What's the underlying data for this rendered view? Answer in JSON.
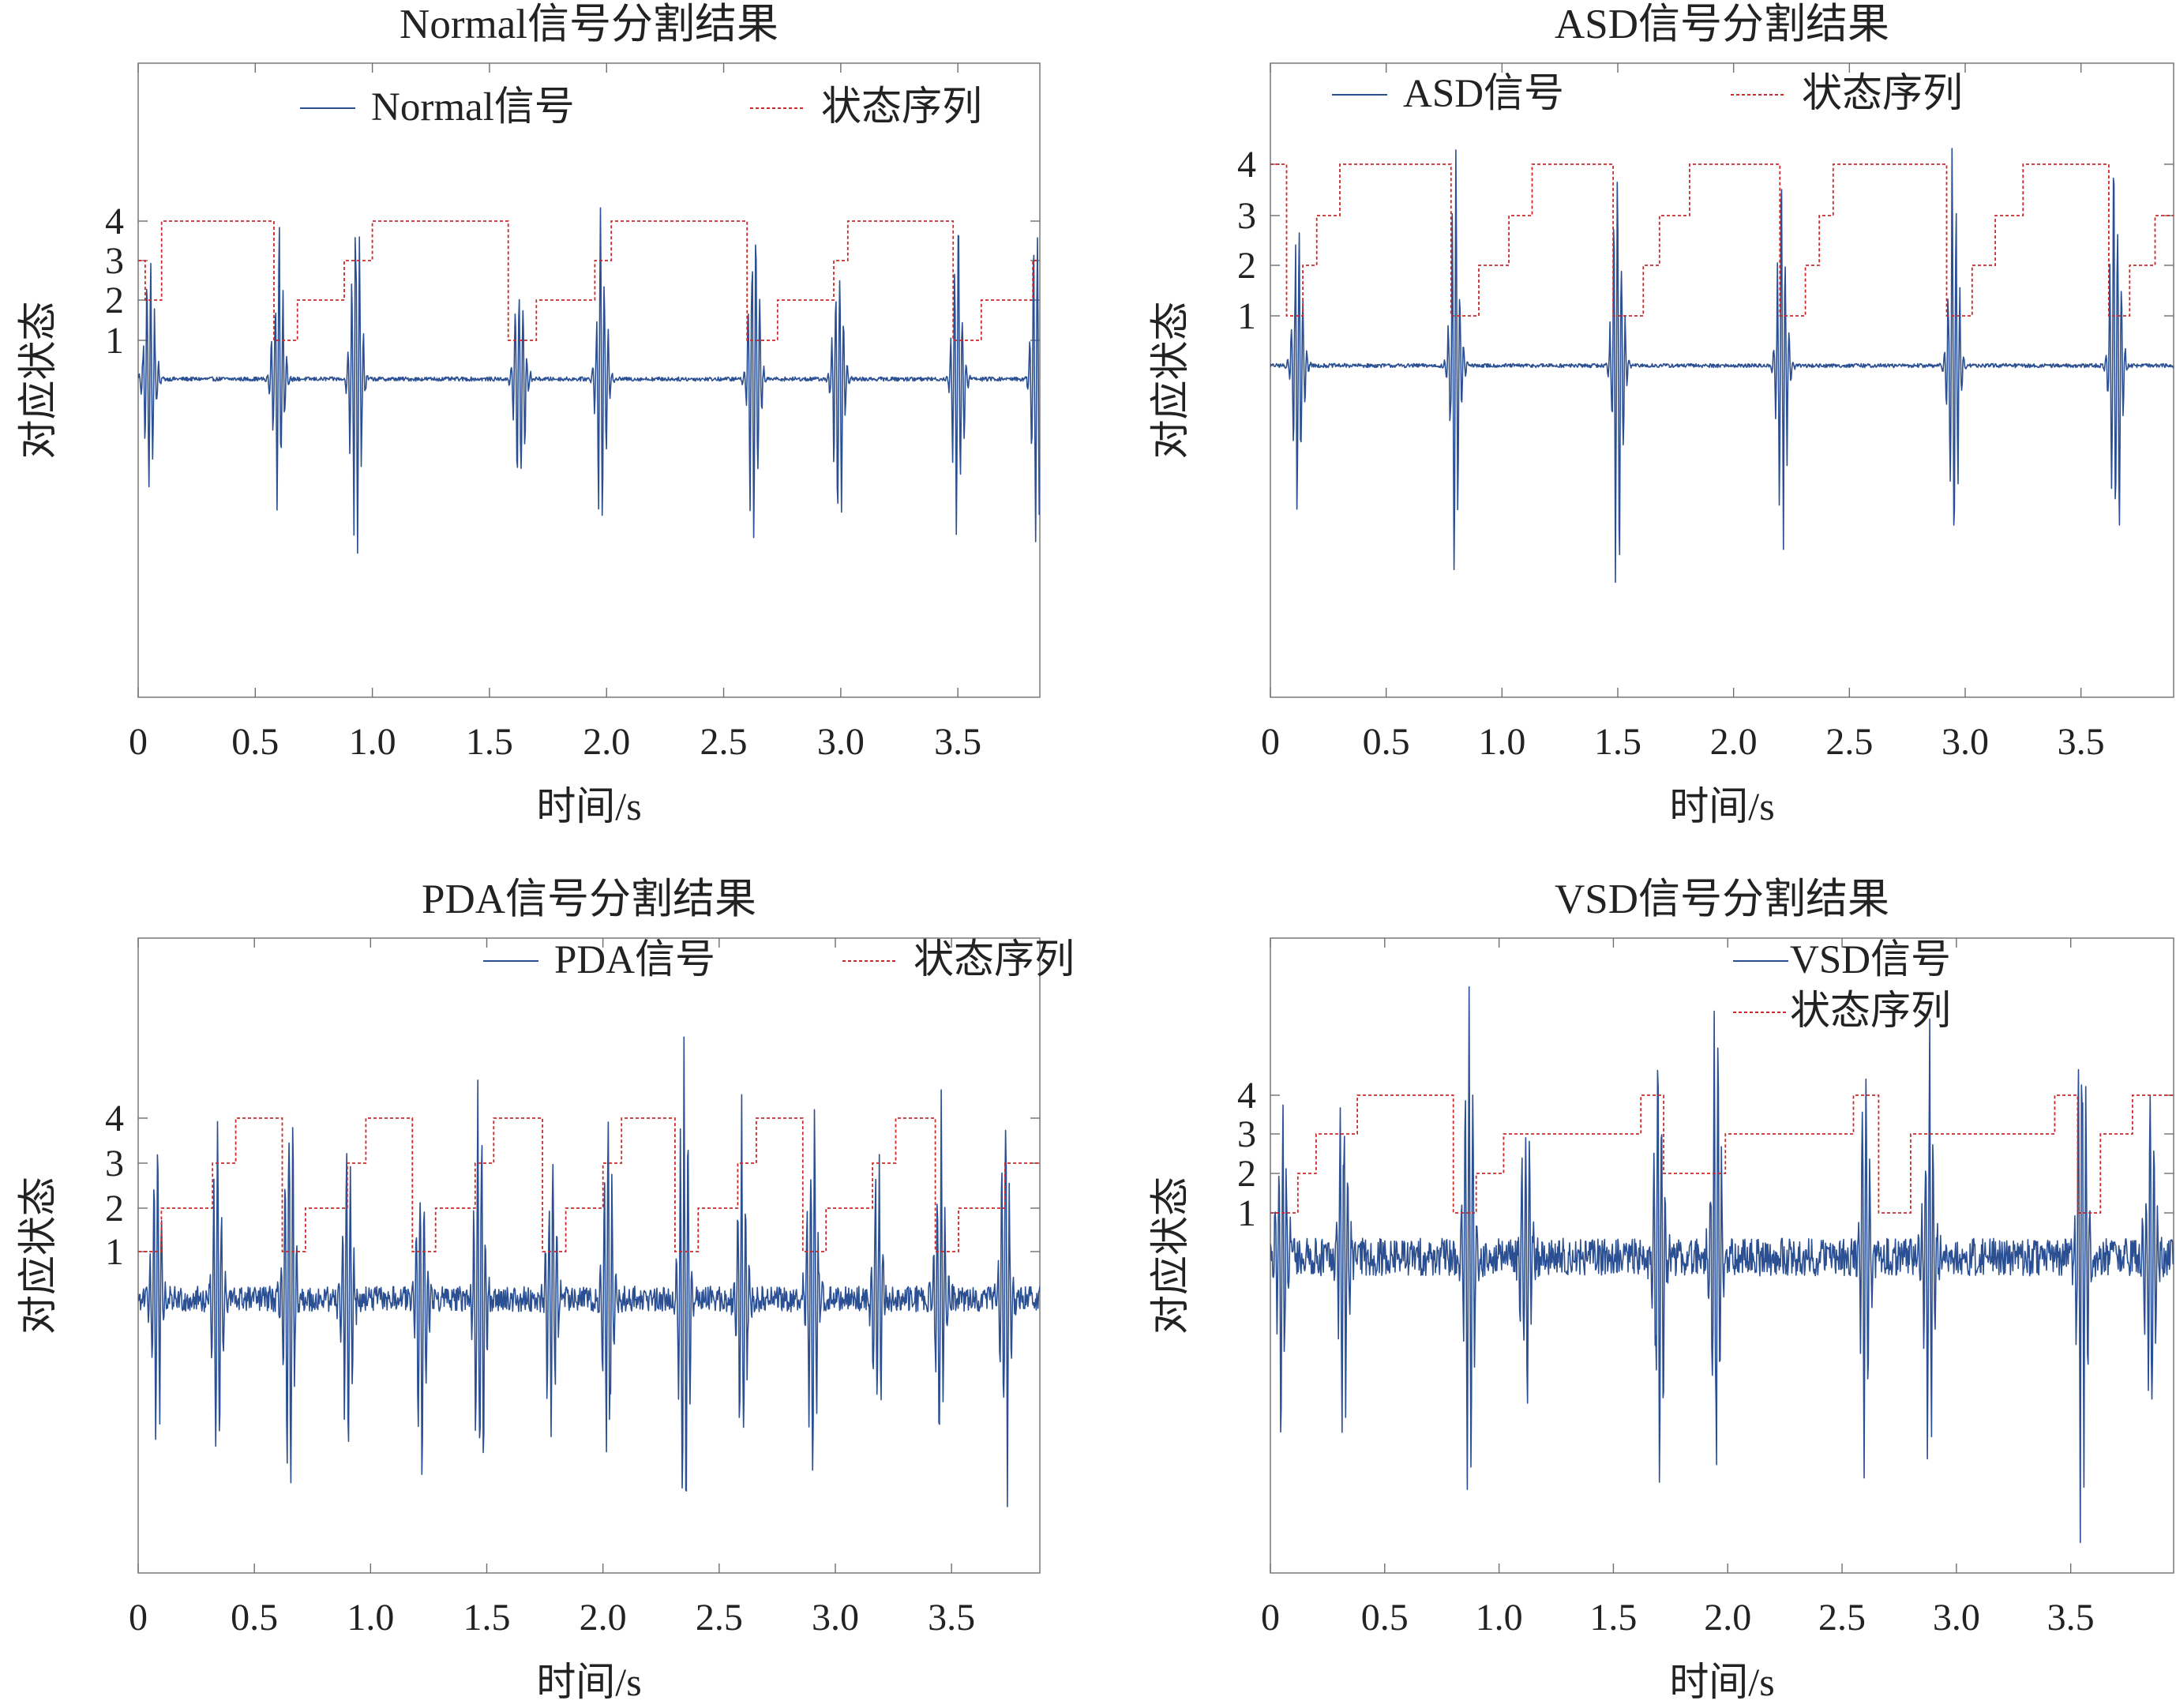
{
  "chart_data": [
    {
      "type": "line",
      "title": "Normal信号分割结果",
      "xlabel": "时间/s",
      "ylabel": "对应状态",
      "xlim": [
        0,
        3.85
      ],
      "xticks": [
        "0",
        "0.5",
        "1.0",
        "1.5",
        "2.0",
        "2.5",
        "3.0",
        "3.5"
      ],
      "yticks": [
        "1",
        "2",
        "3",
        "4"
      ],
      "legend_position": "top",
      "series": [
        {
          "name": "Normal信号",
          "color": "#2b4f93",
          "style": "solid",
          "beats": [
            0.05,
            0.6,
            0.93,
            1.63,
            1.98,
            2.63,
            2.99,
            3.5,
            3.84
          ],
          "amplitude": 3.6,
          "noise": 0.05
        },
        {
          "name": "状态序列",
          "color": "#cc2a2a",
          "style": "dotted",
          "x": [
            0,
            0.03,
            0.1,
            0.58,
            0.68,
            0.88,
            1.0,
            1.58,
            1.7,
            1.95,
            2.02,
            2.6,
            2.73,
            2.97,
            3.03,
            3.48,
            3.6,
            3.82,
            3.85
          ],
          "y": [
            3,
            2,
            4,
            1,
            2,
            3,
            4,
            1,
            2,
            3,
            4,
            1,
            2,
            3,
            4,
            1,
            2,
            3,
            3
          ]
        }
      ]
    },
    {
      "type": "line",
      "title": "ASD信号分割结果",
      "xlabel": "时间/s",
      "ylabel": "对应状态",
      "xlim": [
        0,
        3.9
      ],
      "xticks": [
        "0",
        "0.5",
        "1.0",
        "1.5",
        "2.0",
        "2.5",
        "3.0",
        "3.5"
      ],
      "yticks": [
        "1",
        "2",
        "3",
        "4"
      ],
      "legend_position": "top",
      "series": [
        {
          "name": "ASD信号",
          "color": "#2b4f93",
          "style": "solid",
          "beats": [
            0.12,
            0.8,
            1.5,
            2.21,
            2.95,
            3.65
          ],
          "amplitude": 4.6,
          "noise": 0.05
        },
        {
          "name": "状态序列",
          "color": "#cc2a2a",
          "style": "dotted",
          "x": [
            0,
            0.07,
            0.14,
            0.2,
            0.3,
            0.78,
            0.9,
            1.03,
            1.13,
            1.48,
            1.61,
            1.68,
            1.81,
            2.2,
            2.31,
            2.37,
            2.43,
            2.92,
            3.03,
            3.13,
            3.25,
            3.62,
            3.71,
            3.82,
            3.9
          ],
          "y": [
            4,
            1,
            2,
            3,
            4,
            1,
            2,
            3,
            4,
            1,
            2,
            3,
            4,
            1,
            2,
            3,
            4,
            1,
            2,
            3,
            4,
            1,
            2,
            3,
            3
          ]
        }
      ]
    },
    {
      "type": "line",
      "title": "PDA信号分割结果",
      "xlabel": "时间/s",
      "ylabel": "对应状态",
      "xlim": [
        0,
        3.88
      ],
      "xticks": [
        "0",
        "0.5",
        "1.0",
        "1.5",
        "2.0",
        "2.5",
        "3.0",
        "3.5"
      ],
      "yticks": [
        "1",
        "2",
        "3",
        "4"
      ],
      "legend_position": "top-right",
      "series": [
        {
          "name": "PDA信号",
          "color": "#2b4f93",
          "style": "solid",
          "beats": [
            0.08,
            0.34,
            0.65,
            0.9,
            1.22,
            1.47,
            1.78,
            2.02,
            2.35,
            2.6,
            2.9,
            3.18,
            3.45,
            3.73
          ],
          "amplitude": 3.3,
          "noise": 0.25
        },
        {
          "name": "状态序列",
          "color": "#cc2a2a",
          "style": "dotted",
          "x": [
            0,
            0.1,
            0.32,
            0.42,
            0.62,
            0.72,
            0.9,
            0.98,
            1.18,
            1.28,
            1.45,
            1.53,
            1.74,
            1.84,
            2.0,
            2.08,
            2.31,
            2.41,
            2.58,
            2.66,
            2.86,
            2.96,
            3.16,
            3.26,
            3.43,
            3.53,
            3.73,
            3.88
          ],
          "y": [
            1,
            2,
            3,
            4,
            1,
            2,
            3,
            4,
            1,
            2,
            3,
            4,
            1,
            2,
            3,
            4,
            1,
            2,
            3,
            4,
            1,
            2,
            3,
            4,
            1,
            2,
            3,
            3
          ]
        }
      ]
    },
    {
      "type": "line",
      "title": "VSD信号分割结果",
      "xlabel": "时间/s",
      "ylabel": "对应状态",
      "xlim": [
        0,
        3.95
      ],
      "xticks": [
        "0",
        "0.5",
        "1.0",
        "1.5",
        "2.0",
        "2.5",
        "3.0",
        "3.5"
      ],
      "yticks": [
        "1",
        "2",
        "3",
        "4"
      ],
      "legend_position": "top",
      "series": [
        {
          "name": "VSD信号",
          "color": "#2b4f93",
          "style": "solid",
          "beats": [
            0.05,
            0.32,
            0.87,
            1.12,
            1.7,
            1.95,
            2.6,
            2.88,
            3.55,
            3.85
          ],
          "amplitude": 4.4,
          "noise": 0.45
        },
        {
          "name": "状态序列",
          "color": "#cc2a2a",
          "style": "dotted",
          "x": [
            0,
            0.12,
            0.2,
            0.38,
            0.8,
            0.9,
            1.02,
            1.62,
            1.72,
            1.99,
            2.55,
            2.66,
            2.8,
            3.43,
            3.53,
            3.63,
            3.77,
            3.95
          ],
          "y": [
            1,
            2,
            3,
            4,
            1,
            2,
            3,
            4,
            2,
            3,
            4,
            1,
            3,
            4,
            1,
            3,
            4,
            4
          ]
        }
      ]
    }
  ]
}
